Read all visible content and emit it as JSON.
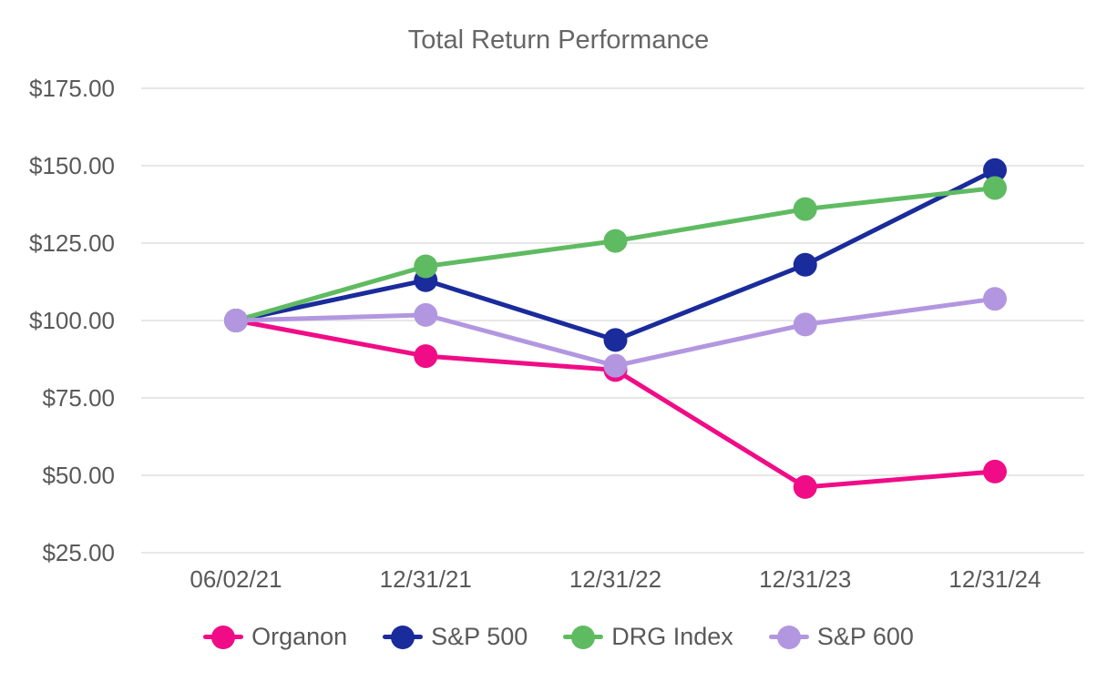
{
  "chart_data": {
    "type": "line",
    "title": "Total Return Performance",
    "x": [
      "06/02/21",
      "12/31/21",
      "12/31/22",
      "12/31/23",
      "12/31/24"
    ],
    "y_ticks": [
      175,
      150,
      125,
      100,
      75,
      50,
      25
    ],
    "y_tick_labels": [
      "$175.00",
      "$150.00",
      "$125.00",
      "$100.00",
      "$75.00",
      "$50.00",
      "$25.00"
    ],
    "ylim": [
      25,
      175
    ],
    "grid": "horizontal-only",
    "legend_position": "bottom",
    "series": [
      {
        "name": "Organon",
        "color": "#F00C87",
        "values": [
          100,
          88.5,
          84.0,
          46.2,
          51.2
        ]
      },
      {
        "name": "S&P 500",
        "color": "#1A2B9B",
        "values": [
          100,
          113.0,
          93.7,
          118.0,
          148.6
        ]
      },
      {
        "name": "DRG Index",
        "color": "#5FBB62",
        "values": [
          100,
          117.5,
          125.7,
          136.0,
          142.8
        ]
      },
      {
        "name": "S&P 600",
        "color": "#B297E0",
        "values": [
          100,
          101.8,
          85.4,
          98.7,
          107.0
        ]
      }
    ]
  },
  "colors": {
    "background": "#FFFFFF",
    "gridline": "#E7E7E7",
    "axis_text": "#595959",
    "title_text": "#666666"
  }
}
